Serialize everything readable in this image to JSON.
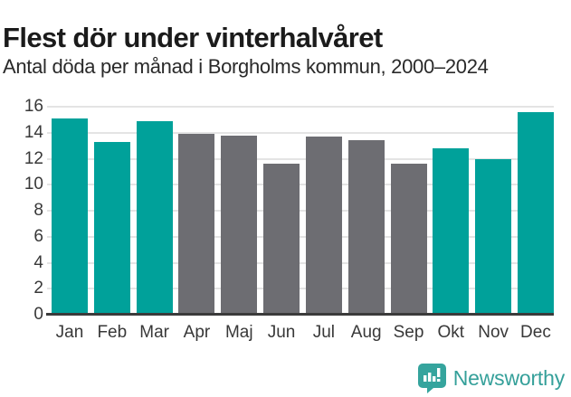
{
  "header": {
    "title": "Flest dör under vinterhalvåret",
    "subtitle": "Antal döda per månad i Borgholms kommun, 2000–2024"
  },
  "chart_data": {
    "type": "bar",
    "title": "Flest dör under vinterhalvåret",
    "subtitle": "Antal döda per månad i Borgholms kommun, 2000–2024",
    "categories": [
      "Jan",
      "Feb",
      "Mar",
      "Apr",
      "Maj",
      "Jun",
      "Jul",
      "Aug",
      "Sep",
      "Okt",
      "Nov",
      "Dec"
    ],
    "values": [
      15.1,
      13.3,
      14.9,
      13.9,
      13.8,
      11.6,
      13.7,
      13.4,
      11.6,
      12.8,
      12.0,
      15.6
    ],
    "bar_colors": [
      "teal",
      "teal",
      "teal",
      "gray",
      "gray",
      "gray",
      "gray",
      "gray",
      "gray",
      "teal",
      "teal",
      "teal"
    ],
    "colors": {
      "teal": "#00a19a",
      "gray": "#6d6d72"
    },
    "xlabel": "",
    "ylabel": "",
    "ylim": [
      0,
      16
    ],
    "yticks": [
      0,
      2,
      4,
      6,
      8,
      10,
      12,
      14,
      16
    ],
    "grid": "horizontal",
    "legend": "none"
  },
  "footer": {
    "brand": "Newsworthy",
    "brand_color": "#35a09a",
    "logo_icon": "bar-chart-speech-bubble-icon"
  }
}
